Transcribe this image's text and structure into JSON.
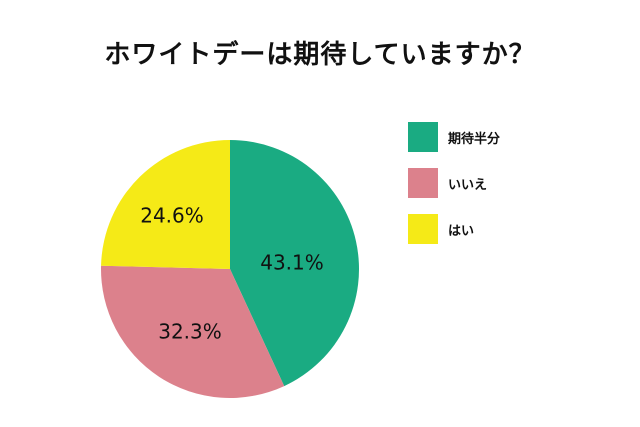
{
  "chart_data": {
    "type": "pie",
    "title": "ホワイトデーは期待していますか？",
    "series": [
      {
        "name": "期待半分",
        "value": 43.1,
        "label": "43.1%",
        "color": "#1aab82"
      },
      {
        "name": "いいえ",
        "value": 32.3,
        "label": "32.3%",
        "color": "#dc818c"
      },
      {
        "name": "はい",
        "value": 24.6,
        "label": "24.6%",
        "color": "#f5ea17"
      }
    ],
    "legend": {
      "position": "top-right",
      "items": [
        "期待半分",
        "いいえ",
        "はい"
      ]
    }
  }
}
